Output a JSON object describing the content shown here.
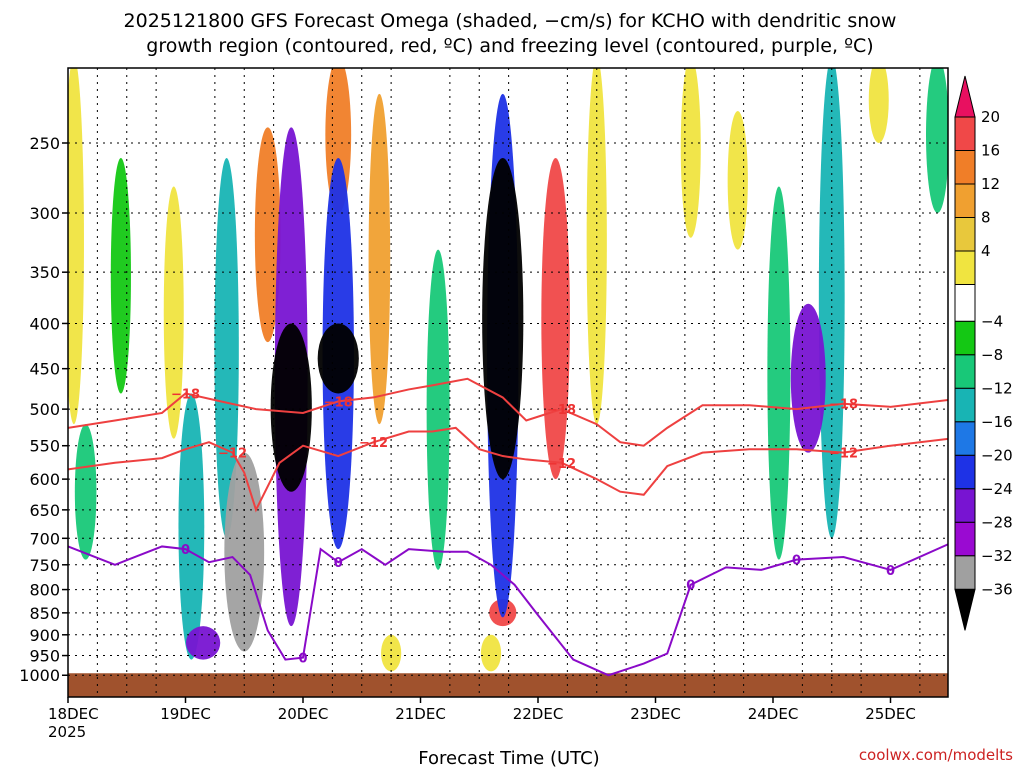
{
  "chart_data": {
    "type": "heatmap",
    "title_line1": "2025121800 GFS Forecast Omega (shaded, −cm/s) for KCHO with dendritic snow",
    "title_line2": "growth region (contoured, red, ºC) and freezing level (contoured, purple, ºC)",
    "xlabel": "Forecast Time (UTC)",
    "ylabel": "",
    "credit": "coolwx.com/modelts",
    "x_start_label": "18DEC",
    "x_start_year": "2025",
    "x_ticks": [
      {
        "day": 0,
        "label": "18DEC"
      },
      {
        "day": 1,
        "label": "19DEC"
      },
      {
        "day": 2,
        "label": "20DEC"
      },
      {
        "day": 3,
        "label": "21DEC"
      },
      {
        "day": 4,
        "label": "22DEC"
      },
      {
        "day": 5,
        "label": "23DEC"
      },
      {
        "day": 6,
        "label": "24DEC"
      },
      {
        "day": 7,
        "label": "25DEC"
      }
    ],
    "x_range_days": [
      0,
      7.5
    ],
    "y_range_hpa": [
      200,
      1025
    ],
    "y_ticks": [
      250,
      300,
      350,
      400,
      450,
      500,
      550,
      600,
      650,
      700,
      750,
      800,
      850,
      900,
      950,
      1000
    ],
    "grid": true,
    "colorbar": {
      "labels": [
        "20",
        "16",
        "12",
        "8",
        "4",
        "−4",
        "−8",
        "−12",
        "−16",
        "−20",
        "−24",
        "−28",
        "−32",
        "−36"
      ],
      "colors": [
        "#e81060",
        "#f04848",
        "#f07e28",
        "#f0a030",
        "#e8c83c",
        "#f0e440",
        "#ffffff",
        "#14c814",
        "#18c878",
        "#18b4b4",
        "#1e78e6",
        "#1e32e6",
        "#7814d2",
        "#9a0ad2",
        "#a0a0a0",
        "#000000"
      ]
    },
    "omega_features": [
      {
        "t": 0.05,
        "p_top": 200,
        "p_bot": 520,
        "value": 6
      },
      {
        "t": 0.45,
        "p_top": 260,
        "p_bot": 480,
        "value": -6
      },
      {
        "t": 0.15,
        "p_top": 520,
        "p_bot": 740,
        "value": -8
      },
      {
        "t": 0.9,
        "p_top": 280,
        "p_bot": 540,
        "value": 5
      },
      {
        "t": 1.05,
        "p_top": 480,
        "p_bot": 960,
        "value": -14
      },
      {
        "t": 1.15,
        "p_top": 880,
        "p_bot": 960,
        "value": -26
      },
      {
        "t": 1.35,
        "p_top": 260,
        "p_bot": 700,
        "value": -12
      },
      {
        "t": 1.5,
        "p_top": 560,
        "p_bot": 940,
        "value": -34
      },
      {
        "t": 1.7,
        "p_top": 240,
        "p_bot": 420,
        "value": 14
      },
      {
        "t": 1.9,
        "p_top": 400,
        "p_bot": 620,
        "value": -36
      },
      {
        "t": 1.9,
        "p_top": 240,
        "p_bot": 880,
        "value": -24
      },
      {
        "t": 2.3,
        "p_top": 200,
        "p_bot": 300,
        "value": 14
      },
      {
        "t": 2.3,
        "p_top": 400,
        "p_bot": 480,
        "value": -36
      },
      {
        "t": 2.3,
        "p_top": 260,
        "p_bot": 720,
        "value": -22
      },
      {
        "t": 2.65,
        "p_top": 220,
        "p_bot": 520,
        "value": 8
      },
      {
        "t": 2.75,
        "p_top": 900,
        "p_bot": 990,
        "value": 6
      },
      {
        "t": 3.15,
        "p_top": 330,
        "p_bot": 760,
        "value": -10
      },
      {
        "t": 3.7,
        "p_top": 260,
        "p_bot": 600,
        "value": -36
      },
      {
        "t": 3.7,
        "p_top": 220,
        "p_bot": 860,
        "value": -22
      },
      {
        "t": 3.7,
        "p_top": 820,
        "p_bot": 880,
        "value": 16
      },
      {
        "t": 3.6,
        "p_top": 900,
        "p_bot": 990,
        "value": 6
      },
      {
        "t": 4.15,
        "p_top": 260,
        "p_bot": 600,
        "value": 18
      },
      {
        "t": 4.5,
        "p_top": 200,
        "p_bot": 520,
        "value": 6
      },
      {
        "t": 5.3,
        "p_top": 200,
        "p_bot": 320,
        "value": 5
      },
      {
        "t": 5.7,
        "p_top": 230,
        "p_bot": 330,
        "value": 6
      },
      {
        "t": 6.05,
        "p_top": 280,
        "p_bot": 740,
        "value": -10
      },
      {
        "t": 6.3,
        "p_top": 380,
        "p_bot": 560,
        "value": -27
      },
      {
        "t": 6.5,
        "p_top": 200,
        "p_bot": 700,
        "value": -14
      },
      {
        "t": 6.9,
        "p_top": 200,
        "p_bot": 250,
        "value": 5
      },
      {
        "t": 7.4,
        "p_top": 200,
        "p_bot": 300,
        "value": -10
      }
    ],
    "isotherm_neg18": {
      "label": "−18",
      "t": [
        0,
        0.4,
        0.8,
        1.0,
        1.3,
        1.6,
        2.0,
        2.3,
        2.6,
        2.9,
        3.1,
        3.4,
        3.7,
        3.9,
        4.2,
        4.5,
        4.7,
        4.9,
        5.1,
        5.4,
        5.8,
        6.2,
        6.6,
        7.0,
        7.5
      ],
      "p": [
        525,
        515,
        505,
        480,
        490,
        500,
        505,
        490,
        485,
        475,
        470,
        462,
        485,
        515,
        500,
        520,
        545,
        550,
        525,
        495,
        495,
        500,
        493,
        497,
        488
      ]
    },
    "isotherm_neg12": {
      "label": "−12",
      "t": [
        0,
        0.4,
        0.8,
        1.0,
        1.2,
        1.4,
        1.5,
        1.6,
        1.8,
        2.0,
        2.3,
        2.6,
        2.9,
        3.1,
        3.3,
        3.5,
        3.7,
        3.9,
        4.2,
        4.5,
        4.7,
        4.9,
        5.1,
        5.4,
        5.8,
        6.2,
        6.6,
        7.0,
        7.5
      ],
      "p": [
        585,
        575,
        568,
        555,
        545,
        560,
        590,
        650,
        575,
        550,
        565,
        545,
        530,
        530,
        525,
        555,
        565,
        570,
        575,
        600,
        620,
        625,
        580,
        560,
        555,
        555,
        560,
        550,
        540
      ]
    },
    "freezing_level": {
      "label": "0",
      "t": [
        0,
        0.4,
        0.8,
        1.0,
        1.2,
        1.4,
        1.55,
        1.7,
        1.85,
        2.0,
        2.15,
        2.3,
        2.5,
        2.7,
        2.9,
        3.2,
        3.4,
        3.6,
        3.8,
        4.0,
        4.3,
        4.6,
        4.9,
        5.1,
        5.3,
        5.6,
        5.9,
        6.2,
        6.6,
        7.0,
        7.5
      ],
      "p": [
        715,
        750,
        715,
        720,
        745,
        735,
        770,
        890,
        960,
        955,
        720,
        745,
        720,
        750,
        720,
        725,
        725,
        750,
        790,
        855,
        960,
        1000,
        970,
        945,
        790,
        755,
        760,
        740,
        735,
        760,
        710
      ]
    }
  }
}
